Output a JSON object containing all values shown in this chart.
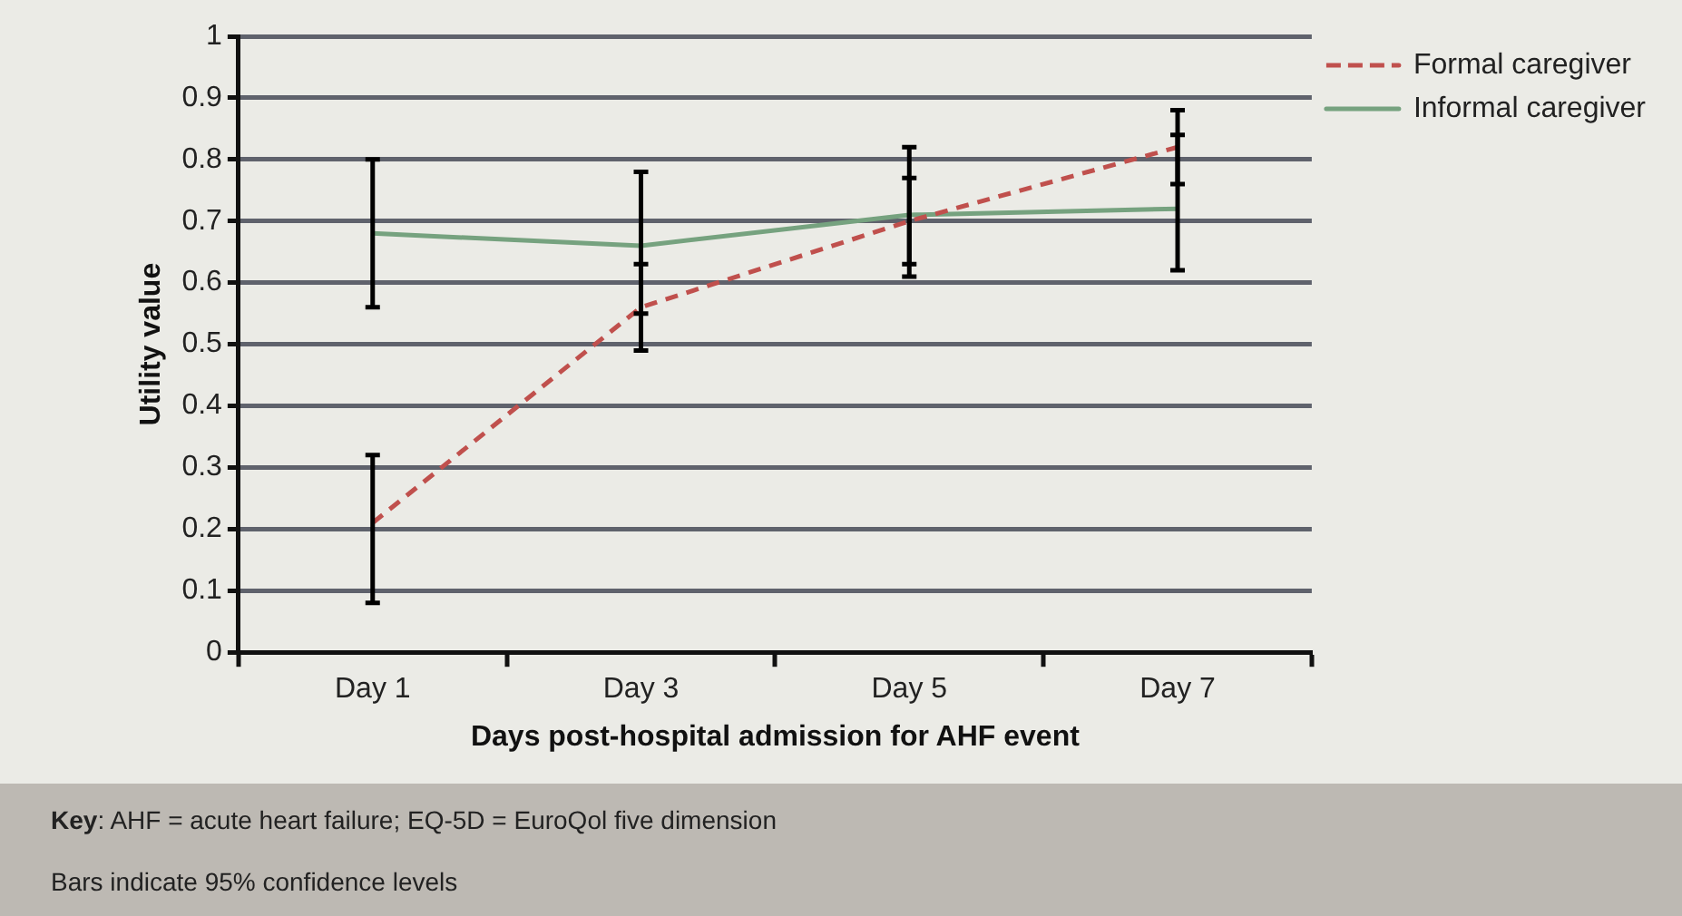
{
  "chart_data": {
    "type": "line",
    "xlabel": "Days post-hospital admission for AHF event",
    "ylabel": "Utility value",
    "categories": [
      "Day 1",
      "Day 3",
      "Day 5",
      "Day 7"
    ],
    "series": [
      {
        "name": "Formal caregiver",
        "color": "#c0504d",
        "line_style": "dashed",
        "values": [
          0.21,
          0.56,
          0.7,
          0.82
        ],
        "errors": [
          [
            0.08,
            0.32
          ],
          [
            0.49,
            0.63
          ],
          [
            0.63,
            0.77
          ],
          [
            0.76,
            0.88
          ]
        ]
      },
      {
        "name": "Informal caregiver",
        "color": "#76a27f",
        "line_style": "solid",
        "values": [
          0.68,
          0.66,
          0.71,
          0.72
        ],
        "errors": [
          [
            0.56,
            0.8
          ],
          [
            0.55,
            0.78
          ],
          [
            0.61,
            0.82
          ],
          [
            0.62,
            0.84
          ]
        ]
      }
    ],
    "ylim": [
      0,
      1
    ],
    "yticks": [
      0,
      0.1,
      0.2,
      0.3,
      0.4,
      0.5,
      0.6,
      0.7,
      0.8,
      0.9,
      1
    ],
    "grid": "y",
    "legend": "top right",
    "marker": "none",
    "annotations": [
      "Key: AHF = acute heart failure; EQ-5D = EuroQol five dimension",
      "Bars indicate 95% confidence levels"
    ]
  }
}
